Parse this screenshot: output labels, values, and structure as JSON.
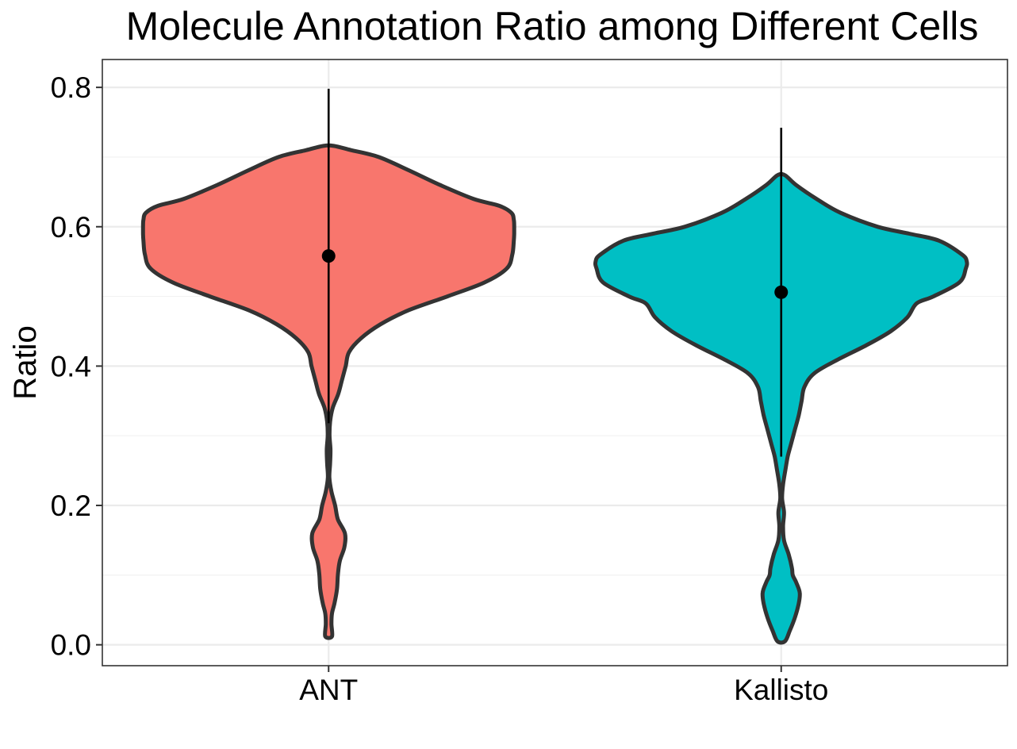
{
  "chart_data": {
    "type": "violin",
    "title": "Molecule Annotation Ratio among Different Cells",
    "xlabel": "",
    "ylabel": "Ratio",
    "ylim": [
      -0.03,
      0.84
    ],
    "y_ticks": [
      0.0,
      0.2,
      0.4,
      0.6,
      0.8
    ],
    "y_tick_labels": [
      "0.0",
      "0.2",
      "0.4",
      "0.6",
      "0.8"
    ],
    "categories": [
      "ANT",
      "Kallisto"
    ],
    "grid": true,
    "legend": "none",
    "series": [
      {
        "category": "ANT",
        "color": "#F8766D",
        "summary": {
          "mean": 0.558,
          "range_low": 0.318,
          "range_high": 0.798
        },
        "density": {
          "y": [
            0.012,
            0.03,
            0.045,
            0.06,
            0.08,
            0.1,
            0.12,
            0.14,
            0.16,
            0.18,
            0.2,
            0.22,
            0.24,
            0.26,
            0.28,
            0.3,
            0.32,
            0.34,
            0.36,
            0.38,
            0.4,
            0.42,
            0.44,
            0.46,
            0.48,
            0.5,
            0.52,
            0.54,
            0.56,
            0.58,
            0.59,
            0.6,
            0.61,
            0.62,
            0.63,
            0.64,
            0.66,
            0.68,
            0.7,
            0.71,
            0.716
          ],
          "width": [
            0.018,
            0.015,
            0.018,
            0.032,
            0.045,
            0.05,
            0.06,
            0.085,
            0.088,
            0.05,
            0.035,
            0.015,
            0.004,
            0.008,
            0.01,
            0.005,
            0.008,
            0.022,
            0.052,
            0.072,
            0.092,
            0.11,
            0.175,
            0.28,
            0.43,
            0.64,
            0.84,
            0.96,
            0.99,
            0.998,
            1.0,
            1.0,
            0.998,
            0.985,
            0.92,
            0.78,
            0.6,
            0.44,
            0.27,
            0.12,
            0.028
          ]
        }
      },
      {
        "category": "Kallisto",
        "color": "#00BFC4",
        "summary": {
          "mean": 0.506,
          "range_low": 0.27,
          "range_high": 0.742
        },
        "density": {
          "y": [
            0.005,
            0.02,
            0.04,
            0.06,
            0.075,
            0.09,
            0.1,
            0.11,
            0.13,
            0.15,
            0.17,
            0.19,
            0.21,
            0.23,
            0.25,
            0.27,
            0.29,
            0.31,
            0.33,
            0.35,
            0.37,
            0.39,
            0.41,
            0.43,
            0.45,
            0.47,
            0.49,
            0.5,
            0.52,
            0.54,
            0.55,
            0.56,
            0.58,
            0.59,
            0.6,
            0.62,
            0.64,
            0.66,
            0.674
          ],
          "width": [
            0.02,
            0.046,
            0.075,
            0.095,
            0.1,
            0.08,
            0.062,
            0.058,
            0.04,
            0.015,
            0.01,
            0.015,
            0.005,
            0.01,
            0.022,
            0.035,
            0.055,
            0.075,
            0.095,
            0.11,
            0.125,
            0.18,
            0.31,
            0.46,
            0.59,
            0.68,
            0.73,
            0.82,
            0.96,
            0.995,
            1.0,
            0.975,
            0.85,
            0.69,
            0.52,
            0.32,
            0.19,
            0.08,
            0.02
          ]
        }
      }
    ]
  }
}
